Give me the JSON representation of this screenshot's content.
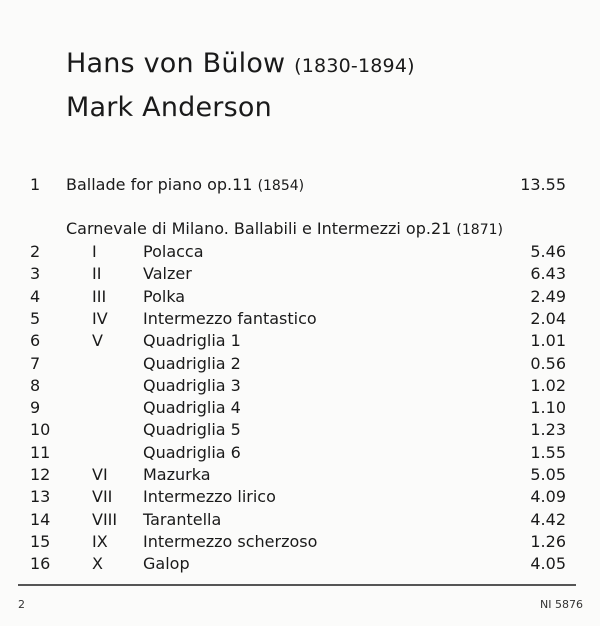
{
  "header": {
    "composer": "Hans von Bülow",
    "composer_years": "(1830-1894)",
    "performer": "Mark Anderson"
  },
  "track1": {
    "number": "1",
    "title": "Ballade for piano op.11",
    "year": "(1854)",
    "duration": "13.55"
  },
  "work": {
    "title": "Carnevale di Milano. Ballabili e Intermezzi op.21",
    "year": "(1871)"
  },
  "tracks": [
    {
      "number": "2",
      "movement": "I",
      "title": "Polacca",
      "duration": "5.46"
    },
    {
      "number": "3",
      "movement": "II",
      "title": "Valzer",
      "duration": "6.43"
    },
    {
      "number": "4",
      "movement": "III",
      "title": "Polka",
      "duration": "2.49"
    },
    {
      "number": "5",
      "movement": "IV",
      "title": "Intermezzo fantastico",
      "duration": "2.04"
    },
    {
      "number": "6",
      "movement": "V",
      "title": "Quadriglia 1",
      "duration": "1.01"
    },
    {
      "number": "7",
      "movement": "",
      "title": "Quadriglia 2",
      "duration": "0.56"
    },
    {
      "number": "8",
      "movement": "",
      "title": "Quadriglia 3",
      "duration": "1.02"
    },
    {
      "number": "9",
      "movement": "",
      "title": "Quadriglia 4",
      "duration": "1.10"
    },
    {
      "number": "10",
      "movement": "",
      "title": "Quadriglia 5",
      "duration": "1.23"
    },
    {
      "number": "11",
      "movement": "",
      "title": "Quadriglia 6",
      "duration": "1.55"
    },
    {
      "number": "12",
      "movement": "VI",
      "title": "Mazurka",
      "duration": "5.05"
    },
    {
      "number": "13",
      "movement": "VII",
      "title": "Intermezzo lirico",
      "duration": "4.09"
    },
    {
      "number": "14",
      "movement": "VIII",
      "title": "Tarantella",
      "duration": "4.42"
    },
    {
      "number": "15",
      "movement": "IX",
      "title": "Intermezzo scherzoso",
      "duration": "1.26"
    },
    {
      "number": "16",
      "movement": "X",
      "title": "Galop",
      "duration": "4.05"
    }
  ],
  "footer": {
    "page_number": "2",
    "catalog": "NI 5876"
  }
}
